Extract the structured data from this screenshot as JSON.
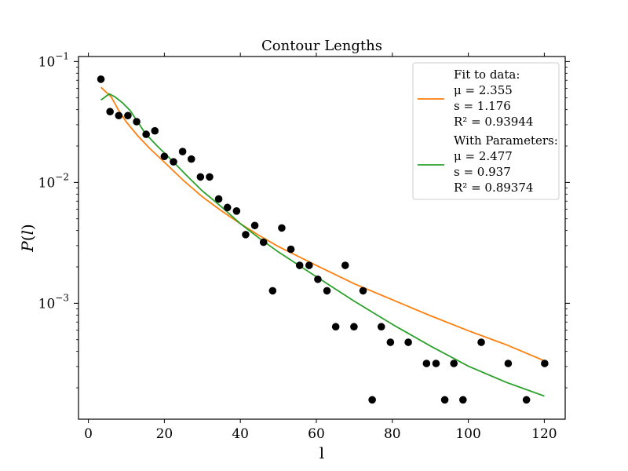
{
  "chart_data": {
    "type": "scatter",
    "title": "Contour Lengths",
    "xlabel": "l",
    "ylabel_base": "P",
    "ylabel_arg": "l",
    "xlim": [
      -2.6,
      125.5
    ],
    "ylim": [
      0.00011,
      0.11
    ],
    "yscale": "log",
    "grid": false,
    "legend_position": "top-right",
    "x_ticks": [
      0,
      20,
      40,
      60,
      80,
      100,
      120
    ],
    "x_tick_labels": [
      "0",
      "20",
      "40",
      "60",
      "80",
      "100",
      "120"
    ],
    "y_ticks": [
      0.1,
      0.01,
      0.001
    ],
    "y_tick_base": "10",
    "y_tick_exponents": [
      "−1",
      "−2",
      "−3"
    ],
    "points": {
      "color": "#000000",
      "x": [
        3.3,
        5.7,
        8.0,
        10.4,
        12.7,
        15.2,
        17.5,
        20.0,
        22.4,
        24.8,
        27.1,
        29.5,
        31.9,
        34.3,
        36.6,
        39.0,
        41.4,
        43.8,
        46.1,
        48.5,
        50.9,
        53.3,
        55.6,
        58.1,
        60.4,
        62.8,
        65.1,
        67.6,
        69.9,
        72.3,
        74.7,
        77.1,
        79.5,
        84.2,
        89.0,
        91.5,
        93.8,
        96.2,
        98.6,
        103.4,
        110.5,
        115.3,
        120.1
      ],
      "y": [
        0.0714,
        0.0385,
        0.0357,
        0.0357,
        0.0318,
        0.025,
        0.0267,
        0.0164,
        0.0148,
        0.018,
        0.0156,
        0.0111,
        0.0111,
        0.0073,
        0.0062,
        0.0058,
        0.0037,
        0.0044,
        0.0032,
        0.00127,
        0.0042,
        0.0028,
        0.00206,
        0.00206,
        0.00158,
        0.00127,
        0.00064,
        0.00206,
        0.00064,
        0.00127,
        0.000159,
        0.00064,
        0.000476,
        0.000476,
        0.000318,
        0.000318,
        0.000159,
        0.000318,
        0.000159,
        0.000476,
        0.000318,
        0.000159,
        0.000318
      ]
    },
    "series": [
      {
        "color": "#ff7f0e",
        "legend_lines": [
          "Fit to data:",
          "μ = 2.355",
          "s = 1.176",
          "R² = 0.93944"
        ],
        "x": [
          3.3,
          6,
          8,
          10,
          13,
          16,
          20,
          25,
          30,
          35,
          40,
          45,
          50,
          60,
          70,
          80,
          90,
          100,
          110,
          120
        ],
        "y": [
          0.0612,
          0.051,
          0.0393,
          0.0316,
          0.0243,
          0.0193,
          0.0147,
          0.0104,
          0.0076,
          0.00583,
          0.00455,
          0.00363,
          0.00295,
          0.00206,
          0.00145,
          0.00107,
          0.00079,
          0.000593,
          0.000454,
          0.000335
        ]
      },
      {
        "color": "#2ca02c",
        "legend_lines": [
          "With Parameters:",
          "μ = 2.477",
          "s = 0.937",
          "R² = 0.89374"
        ],
        "x": [
          3.3,
          5.5,
          7,
          9,
          11,
          13,
          15,
          18,
          22,
          26,
          30,
          35,
          40,
          45,
          50,
          60,
          70,
          80,
          90,
          100,
          110,
          120
        ],
        "y": [
          0.048,
          0.054,
          0.051,
          0.0455,
          0.0393,
          0.0316,
          0.0254,
          0.0202,
          0.0152,
          0.0113,
          0.0085,
          0.0063,
          0.00456,
          0.00345,
          0.00266,
          0.00166,
          0.00104,
          0.00067,
          0.000444,
          0.000302,
          0.000222,
          0.000171
        ]
      }
    ]
  }
}
